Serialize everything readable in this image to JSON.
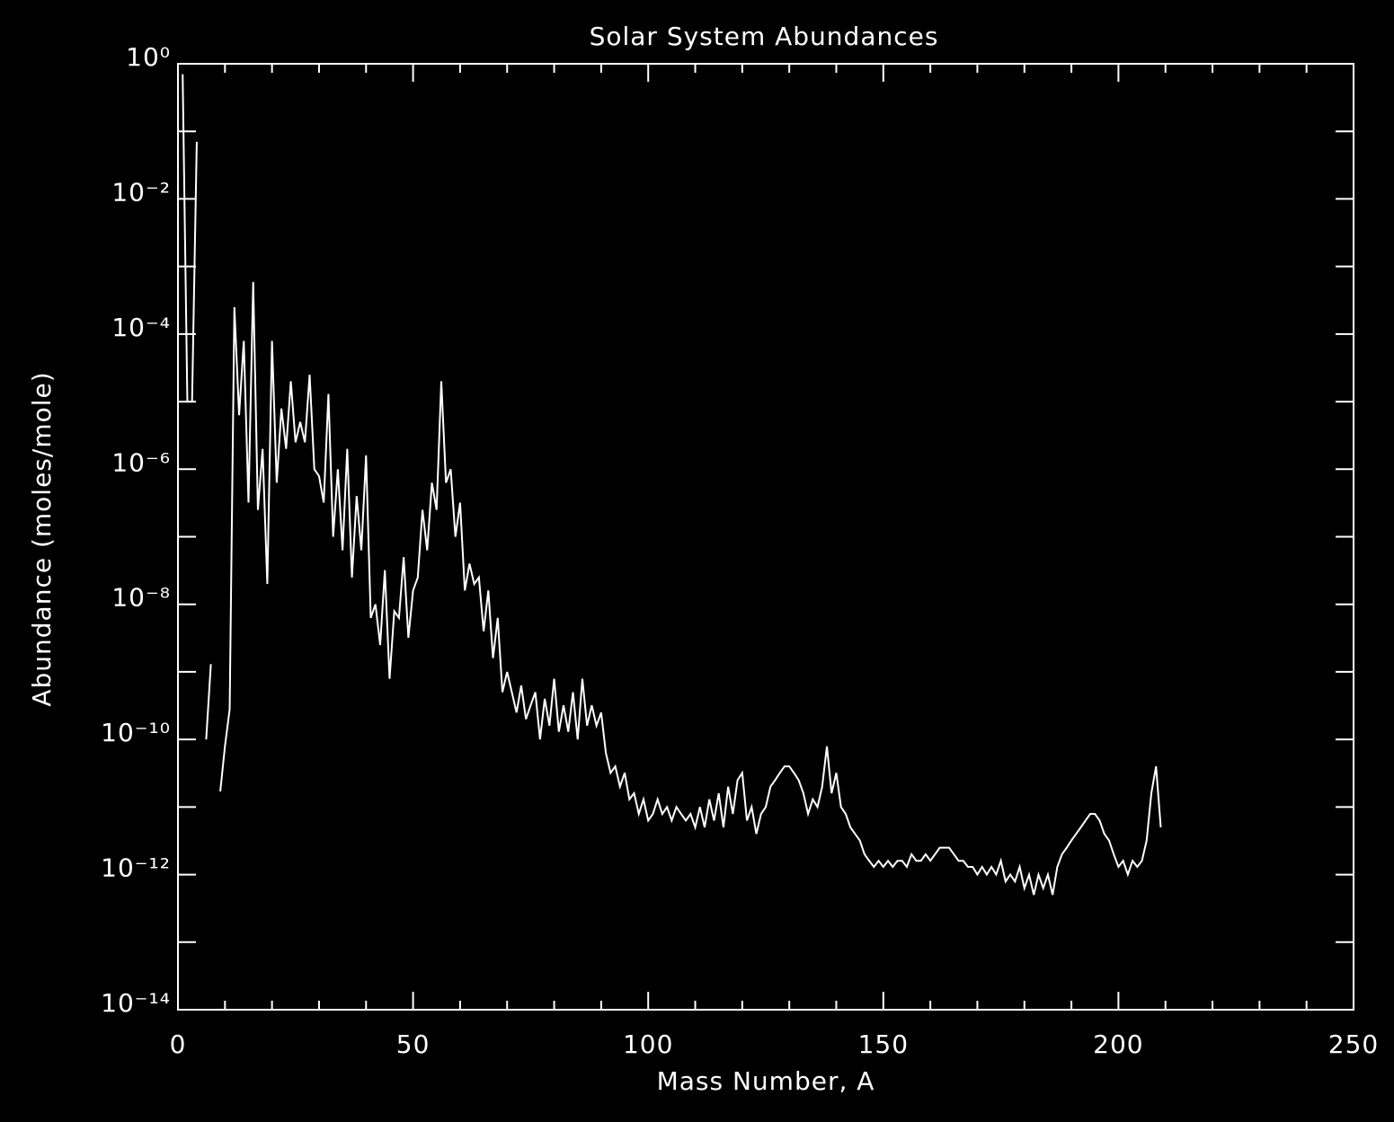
{
  "chart_data": {
    "type": "line",
    "title": "Solar System Abundances",
    "x_label": "Mass Number, A",
    "y_label": "Abundance (moles/mole)",
    "log_y": true,
    "color": "#ffffff",
    "xlim": [
      0,
      250
    ],
    "xticks": [
      0,
      50,
      100,
      150,
      200,
      250
    ],
    "xminorticks": [
      10,
      20,
      30,
      40,
      60,
      70,
      80,
      90,
      110,
      120,
      130,
      140,
      160,
      170,
      180,
      190,
      210,
      220,
      230,
      240
    ],
    "ylim": [
      1e-14,
      1
    ],
    "yticks": [
      {
        "value": 1,
        "label": "10⁰"
      },
      {
        "value": 0.01,
        "label": "10⁻²"
      },
      {
        "value": 0.0001,
        "label": "10⁻⁴"
      },
      {
        "value": 1e-06,
        "label": "10⁻⁶"
      },
      {
        "value": 1e-08,
        "label": "10⁻⁸"
      },
      {
        "value": 1e-10,
        "label": "10⁻¹⁰"
      },
      {
        "value": 1e-12,
        "label": "10⁻¹²"
      },
      {
        "value": 1e-14,
        "label": "10⁻¹⁴"
      }
    ],
    "yminorticks": [
      0.1,
      0.001,
      1e-05,
      1e-07,
      1e-09,
      1e-11,
      1e-13
    ],
    "x": [
      1,
      2,
      3,
      4,
      5,
      6,
      7,
      8,
      9,
      10,
      11,
      12,
      13,
      14,
      15,
      16,
      17,
      18,
      19,
      20,
      21,
      22,
      23,
      24,
      25,
      26,
      27,
      28,
      29,
      30,
      31,
      32,
      33,
      34,
      35,
      36,
      37,
      38,
      39,
      40,
      41,
      42,
      43,
      44,
      45,
      46,
      47,
      48,
      49,
      50,
      51,
      52,
      53,
      54,
      55,
      56,
      57,
      58,
      59,
      60,
      61,
      62,
      63,
      64,
      65,
      66,
      67,
      68,
      69,
      70,
      71,
      72,
      73,
      74,
      75,
      76,
      77,
      78,
      79,
      80,
      81,
      82,
      83,
      84,
      85,
      86,
      87,
      88,
      89,
      90,
      91,
      92,
      93,
      94,
      95,
      96,
      97,
      98,
      99,
      100,
      101,
      102,
      103,
      104,
      105,
      106,
      107,
      108,
      109,
      110,
      111,
      112,
      113,
      114,
      115,
      116,
      117,
      118,
      119,
      120,
      121,
      122,
      123,
      124,
      125,
      126,
      127,
      128,
      129,
      130,
      131,
      132,
      133,
      134,
      135,
      136,
      137,
      138,
      139,
      140,
      141,
      142,
      143,
      144,
      145,
      146,
      147,
      148,
      149,
      150,
      151,
      152,
      153,
      154,
      155,
      156,
      157,
      158,
      159,
      160,
      161,
      162,
      163,
      164,
      165,
      166,
      167,
      168,
      169,
      170,
      171,
      172,
      173,
      174,
      175,
      176,
      177,
      178,
      179,
      180,
      181,
      182,
      183,
      184,
      185,
      186,
      187,
      188,
      189,
      190,
      191,
      192,
      193,
      194,
      195,
      196,
      197,
      198,
      199,
      200,
      201,
      202,
      203,
      204,
      205,
      206,
      207,
      208,
      209
    ],
    "values": [
      0.7,
      1e-05,
      1e-05,
      0.07,
      null,
      1e-10,
      1.3e-09,
      null,
      1.7e-11,
      8e-11,
      2.8e-10,
      0.00025,
      6.3e-06,
      7.9e-05,
      3.2e-07,
      0.00059,
      2.5e-07,
      2e-06,
      2e-08,
      7.9e-05,
      6.3e-07,
      7.9e-06,
      2e-06,
      2e-05,
      2.5e-06,
      5e-06,
      2.5e-06,
      2.5e-05,
      1e-06,
      7.9e-07,
      3.2e-07,
      1.3e-05,
      1e-07,
      1e-06,
      6.3e-08,
      2e-06,
      2.5e-08,
      4e-07,
      6.3e-08,
      1.6e-06,
      6.3e-09,
      1e-08,
      2.5e-09,
      3.2e-08,
      7.9e-10,
      7.9e-09,
      6.3e-09,
      5e-08,
      3.2e-09,
      1.6e-08,
      2.5e-08,
      2.5e-07,
      6.3e-08,
      6.3e-07,
      2.5e-07,
      2e-05,
      6.3e-07,
      1e-06,
      1e-07,
      3.2e-07,
      1.6e-08,
      4e-08,
      2e-08,
      2.5e-08,
      4e-09,
      1.6e-08,
      1.6e-09,
      6.3e-09,
      5e-10,
      1e-09,
      5e-10,
      2.5e-10,
      6.3e-10,
      2e-10,
      3.2e-10,
      5e-10,
      1e-10,
      4e-10,
      1.6e-10,
      7.9e-10,
      1.3e-10,
      3.2e-10,
      1.3e-10,
      5e-10,
      1e-10,
      7.9e-10,
      1.6e-10,
      3.2e-10,
      1.6e-10,
      2.5e-10,
      6.3e-11,
      3.2e-11,
      4e-11,
      2e-11,
      3.2e-11,
      1.3e-11,
      1.6e-11,
      7.9e-12,
      1.3e-11,
      6.3e-12,
      7.9e-12,
      1.3e-11,
      7.9e-12,
      1e-11,
      6.3e-12,
      1e-11,
      7.9e-12,
      6.3e-12,
      7.9e-12,
      5e-12,
      1e-11,
      5e-12,
      1.3e-11,
      6.3e-12,
      1.6e-11,
      5e-12,
      2e-11,
      7.9e-12,
      2.5e-11,
      3.2e-11,
      6.3e-12,
      1e-11,
      4e-12,
      7.9e-12,
      1e-11,
      2e-11,
      2.5e-11,
      3.2e-11,
      4e-11,
      4e-11,
      3.2e-11,
      2.5e-11,
      1.6e-11,
      7.9e-12,
      1.3e-11,
      1e-11,
      2e-11,
      7.9e-11,
      1.6e-11,
      3.2e-11,
      1e-11,
      7.9e-12,
      5e-12,
      4e-12,
      3.2e-12,
      2e-12,
      1.6e-12,
      1.3e-12,
      1.6e-12,
      1.3e-12,
      1.6e-12,
      1.3e-12,
      1.6e-12,
      1.6e-12,
      1.3e-12,
      2e-12,
      1.6e-12,
      1.6e-12,
      2e-12,
      1.6e-12,
      2e-12,
      2.5e-12,
      2.5e-12,
      2.5e-12,
      2e-12,
      1.6e-12,
      1.6e-12,
      1.3e-12,
      1.3e-12,
      1e-12,
      1.3e-12,
      1e-12,
      1.3e-12,
      1e-12,
      1.6e-12,
      7.9e-13,
      1e-12,
      7.9e-13,
      1.3e-12,
      6.3e-13,
      1e-12,
      5e-13,
      1e-12,
      6.3e-13,
      1e-12,
      5e-13,
      1.3e-12,
      2e-12,
      2.5e-12,
      3.2e-12,
      4e-12,
      5e-12,
      6.3e-12,
      7.9e-12,
      7.9e-12,
      6.3e-12,
      4e-12,
      3.2e-12,
      2e-12,
      1.3e-12,
      1.6e-12,
      1e-12,
      1.6e-12,
      1.3e-12,
      1.6e-12,
      3.2e-12,
      1.6e-11,
      4e-11,
      5e-12
    ]
  }
}
